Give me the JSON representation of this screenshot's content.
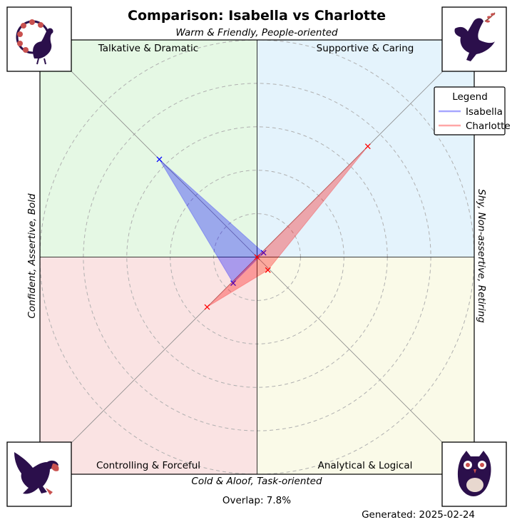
{
  "chart_data": {
    "type": "scatter",
    "title": "Comparison: Isabella vs Charlotte",
    "axis_labels": {
      "top": "Warm & Friendly, People-oriented",
      "bottom": "Cold & Aloof, Task-oriented",
      "left": "Confident, Assertive, Bold",
      "right": "Shy, Non-assertive, Retiring"
    },
    "quadrants": {
      "top_left": {
        "label": "Talkative & Dramatic",
        "color": "#e5f8e4",
        "icon": "peacock-icon"
      },
      "top_right": {
        "label": "Supportive & Caring",
        "color": "#e4f3fc",
        "icon": "dove-icon"
      },
      "bottom_left": {
        "label": "Controlling & Forceful",
        "color": "#fae3e3",
        "icon": "eagle-icon"
      },
      "bottom_right": {
        "label": "Analytical & Logical",
        "color": "#fafae8",
        "icon": "owl-icon"
      }
    },
    "xlim": [
      -1,
      1
    ],
    "ylim": [
      -1,
      1
    ],
    "grid": "dashed concentric circles",
    "legend": {
      "title": "Legend",
      "placement": "top-right"
    },
    "series": [
      {
        "name": "Isabella",
        "color": "#0000ff",
        "fill": "#0000ff",
        "points": [
          [
            -0.45,
            0.45
          ],
          [
            0.03,
            0.02
          ],
          [
            -0.11,
            -0.12
          ]
        ]
      },
      {
        "name": "Charlotte",
        "color": "#ff0000",
        "fill": "#ff0000",
        "points": [
          [
            0.51,
            0.51
          ],
          [
            0.05,
            -0.06
          ],
          [
            -0.23,
            -0.23
          ],
          [
            0.0,
            0.0
          ]
        ]
      }
    ],
    "annotations": {
      "overlap": "Overlap: 7.8%",
      "generated": "Generated: 2025-02-24"
    }
  }
}
